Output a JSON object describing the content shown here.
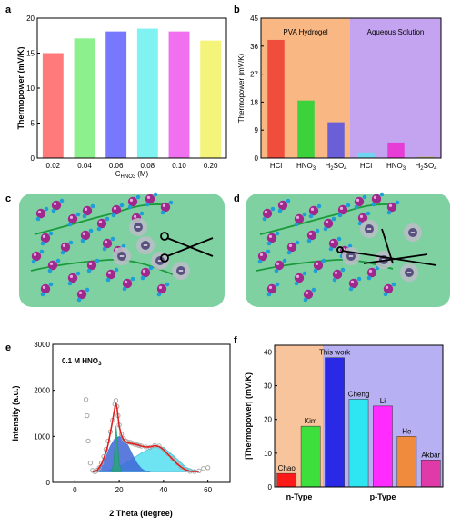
{
  "panels": {
    "a": {
      "label": "a"
    },
    "b": {
      "label": "b"
    },
    "c": {
      "label": "c"
    },
    "d": {
      "label": "d"
    },
    "e": {
      "label": "e"
    },
    "f": {
      "label": "f"
    }
  },
  "chart_data": [
    {
      "panel": "a",
      "type": "bar",
      "categories": [
        "0.02",
        "0.04",
        "0.06",
        "0.08",
        "0.10",
        "0.20"
      ],
      "values": [
        15.0,
        17.1,
        18.1,
        18.5,
        18.1,
        16.8
      ],
      "colors": [
        "#ff7a7a",
        "#8cf08c",
        "#7878ff",
        "#80f2f2",
        "#f070f0",
        "#f4f47a"
      ],
      "xlabel": "C",
      "xlabel_sub": "HNO3",
      "xlabel_unit": "(M)",
      "ylabel": "Thermopower (mV/K)",
      "ylim": [
        0,
        20
      ],
      "yticks": [
        "0",
        "5",
        "10",
        "15",
        "20"
      ]
    },
    {
      "panel": "b",
      "type": "bar",
      "categories": [
        "HCl",
        "HNO3",
        "H2SO4",
        "HCl",
        "HNO3",
        "H2SO4"
      ],
      "category_labels": [
        {
          "main": "HCl",
          "sub": "",
          "tail": ""
        },
        {
          "main": "HNO",
          "sub": "3",
          "tail": ""
        },
        {
          "main": "H",
          "sub": "2",
          "tail": "SO",
          "sub2": "4"
        },
        {
          "main": "HCl",
          "sub": "",
          "tail": ""
        },
        {
          "main": "HNO",
          "sub": "3",
          "tail": ""
        },
        {
          "main": "H",
          "sub": "2",
          "tail": "SO",
          "sub2": "4"
        }
      ],
      "values": [
        38.0,
        18.5,
        11.5,
        1.8,
        5.0,
        0.4
      ],
      "colors": [
        "#f04e3c",
        "#3cd23c",
        "#6a5fd6",
        "#6ed6f0",
        "#e83cd6",
        "#b8b46a"
      ],
      "groups": [
        {
          "name": "PVA Hydrogel",
          "color": "#f8b783"
        },
        {
          "name": "Aqueous Solution",
          "color": "#c4a4f0"
        }
      ],
      "ylabel": "Thermopower (mV/K)",
      "ylim": [
        0,
        45
      ],
      "yticks": [
        "0",
        "9",
        "18",
        "27",
        "36",
        "45"
      ]
    },
    {
      "panel": "e",
      "type": "line",
      "annotation": "0.1 M HNO",
      "annotation_sub": "3",
      "xlabel": "2 Theta (degree)",
      "ylabel": "Intensity (a.u.)",
      "xlim": [
        -10,
        70
      ],
      "ylim": [
        0,
        3000
      ],
      "xticks": [
        "0",
        "20",
        "40",
        "60"
      ],
      "yticks": [
        "0",
        "1000",
        "2000",
        "3000"
      ],
      "series": [
        {
          "name": "",
          "color": "#a9a9a9",
          "x": [
            5,
            5.5,
            6,
            7,
            8,
            9,
            10,
            11,
            12,
            13,
            14,
            15,
            16,
            17,
            18,
            18.5,
            19,
            19.5,
            20,
            21,
            22,
            23,
            24,
            25,
            26,
            27,
            28,
            29,
            30,
            32,
            34,
            36,
            38,
            40,
            42,
            44,
            46,
            48,
            50,
            52,
            54,
            56,
            58,
            60
          ],
          "y": [
            1800,
            1450,
            900,
            420,
            260,
            230,
            260,
            320,
            420,
            560,
            720,
            900,
            1100,
            1350,
            1700,
            1780,
            1650,
            1450,
            1250,
            1050,
            950,
            900,
            880,
            870,
            850,
            830,
            820,
            800,
            790,
            770,
            760,
            800,
            790,
            720,
            620,
            520,
            420,
            330,
            270,
            240,
            235,
            250,
            300,
            320
          ]
        },
        {
          "name": "",
          "color": "#e02020",
          "x": [
            8,
            10,
            12,
            14,
            15,
            16,
            17,
            18,
            18.5,
            19,
            19.5,
            20,
            21,
            22,
            23,
            24,
            26,
            28,
            30,
            32,
            34,
            36,
            38,
            40,
            42,
            44,
            46,
            48,
            50,
            52,
            54,
            56
          ],
          "y": [
            230,
            260,
            400,
            650,
            830,
            1080,
            1340,
            1620,
            1720,
            1620,
            1420,
            1220,
            1020,
            930,
            880,
            860,
            840,
            820,
            790,
            770,
            770,
            800,
            780,
            710,
            610,
            510,
            410,
            330,
            270,
            240,
            235,
            240
          ]
        },
        {
          "name": "",
          "color": "#2a6fd0",
          "fill": "#3f66d8",
          "x": [
            8,
            10,
            12,
            14,
            16,
            18,
            20,
            22,
            24,
            26,
            28,
            30,
            32,
            34
          ],
          "y": [
            230,
            260,
            380,
            560,
            790,
            950,
            1000,
            950,
            800,
            600,
            420,
            300,
            240,
            230
          ]
        },
        {
          "name": "",
          "color": "#20b8d8",
          "fill": "#55e0f0",
          "x": [
            10,
            15,
            20,
            25,
            30,
            35,
            38,
            40,
            45,
            50,
            55,
            56
          ],
          "y": [
            230,
            260,
            340,
            480,
            640,
            760,
            780,
            760,
            560,
            330,
            240,
            230
          ]
        },
        {
          "name": "",
          "color": "#1a9a6a",
          "fill": "#2ba37a",
          "x": [
            16.5,
            17.5,
            18.2,
            18.6,
            19.2,
            20,
            21
          ],
          "y": [
            230,
            420,
            900,
            1230,
            900,
            420,
            230
          ]
        }
      ]
    },
    {
      "panel": "f",
      "type": "bar",
      "categories": [
        "Chao",
        "Kim",
        "This work",
        "Cheng",
        "Li",
        "He",
        "Akbar"
      ],
      "values": [
        4,
        18,
        38.3,
        26,
        24,
        15,
        8
      ],
      "colors": [
        "#ff1a1a",
        "#3ddf3d",
        "#2a2ae6",
        "#2ee6f2",
        "#ff2bff",
        "#f08a3c",
        "#e03aa8"
      ],
      "groups": [
        {
          "name": "n-Type",
          "color": "#f8c49c"
        },
        {
          "name": "p-Type",
          "color": "#b7b0f2"
        }
      ],
      "ylabel": "|Thermopower| (mV/K)",
      "ylim": [
        0,
        42
      ],
      "yticks": [
        "0",
        "10",
        "20",
        "30",
        "40"
      ]
    }
  ]
}
